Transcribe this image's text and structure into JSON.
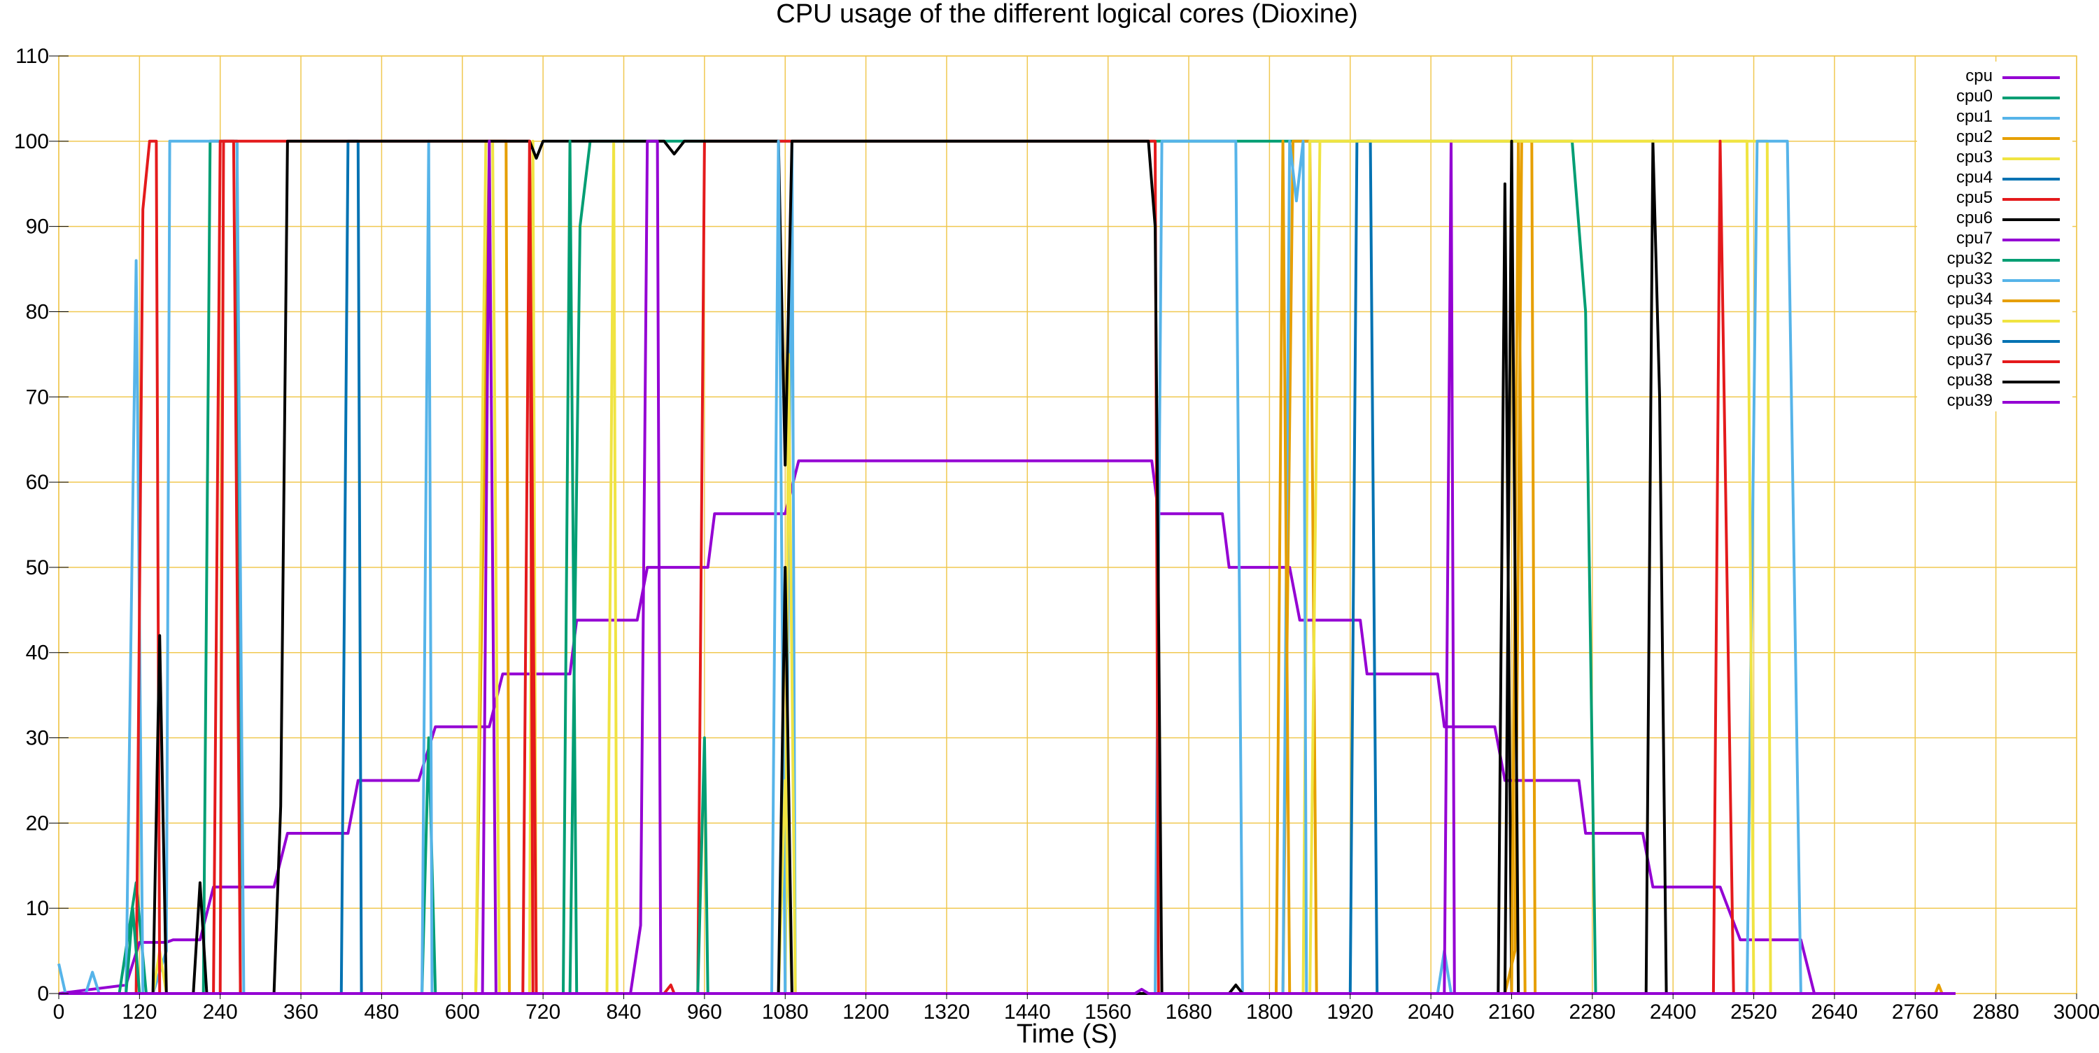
{
  "chart_data": {
    "type": "line",
    "title": "CPU usage of the different logical cores (Dioxine)",
    "xlabel": "Time (S)",
    "ylabel": "",
    "xlim": [
      0,
      3000
    ],
    "ylim": [
      0,
      110
    ],
    "xticks": [
      0,
      120,
      240,
      360,
      480,
      600,
      720,
      840,
      960,
      1080,
      1200,
      1320,
      1440,
      1560,
      1680,
      1800,
      1920,
      2040,
      2160,
      2280,
      2400,
      2520,
      2640,
      2760,
      2880,
      3000
    ],
    "yticks": [
      0,
      10,
      20,
      30,
      40,
      50,
      60,
      70,
      80,
      90,
      100,
      110
    ],
    "grid": true,
    "grid_color": "#f0c850",
    "legend_position": "top-right",
    "series": [
      {
        "name": "cpu",
        "color": "#9400d3",
        "points": [
          [
            0,
            0
          ],
          [
            100,
            1
          ],
          [
            120,
            6
          ],
          [
            160,
            6
          ],
          [
            170,
            6.3
          ],
          [
            210,
            6.3
          ],
          [
            230,
            12.5
          ],
          [
            320,
            12.5
          ],
          [
            340,
            18.8
          ],
          [
            430,
            18.8
          ],
          [
            445,
            25
          ],
          [
            535,
            25
          ],
          [
            560,
            31.3
          ],
          [
            640,
            31.3
          ],
          [
            660,
            37.5
          ],
          [
            760,
            37.5
          ],
          [
            770,
            43.8
          ],
          [
            860,
            43.8
          ],
          [
            875,
            50
          ],
          [
            965,
            50
          ],
          [
            975,
            56.3
          ],
          [
            1080,
            56.3
          ],
          [
            1100,
            62.5
          ],
          [
            1620,
            62.5
          ],
          [
            1625,
            62.5
          ],
          [
            1635,
            56.3
          ],
          [
            1730,
            56.3
          ],
          [
            1740,
            50
          ],
          [
            1830,
            50
          ],
          [
            1845,
            43.8
          ],
          [
            1935,
            43.8
          ],
          [
            1945,
            37.5
          ],
          [
            2050,
            37.5
          ],
          [
            2060,
            31.3
          ],
          [
            2135,
            31.3
          ],
          [
            2150,
            25
          ],
          [
            2260,
            25
          ],
          [
            2270,
            18.8
          ],
          [
            2355,
            18.8
          ],
          [
            2370,
            12.5
          ],
          [
            2470,
            12.5
          ],
          [
            2500,
            6.3
          ],
          [
            2590,
            6.3
          ],
          [
            2610,
            0
          ],
          [
            2820,
            0
          ]
        ]
      },
      {
        "name": "cpu0",
        "color": "#009e73",
        "points": [
          [
            0,
            0
          ],
          [
            90,
            0
          ],
          [
            115,
            13
          ],
          [
            130,
            0
          ],
          [
            215,
            0
          ],
          [
            225,
            100
          ],
          [
            265,
            100
          ],
          [
            270,
            0
          ],
          [
            540,
            0
          ],
          [
            550,
            30
          ],
          [
            560,
            0
          ],
          [
            760,
            0
          ],
          [
            775,
            90
          ],
          [
            790,
            100
          ],
          [
            1820,
            100
          ],
          [
            1840,
            100
          ],
          [
            1860,
            100
          ],
          [
            1880,
            100
          ],
          [
            1890,
            100
          ],
          [
            2250,
            100
          ],
          [
            2270,
            80
          ],
          [
            2285,
            0
          ],
          [
            2820,
            0
          ]
        ]
      },
      {
        "name": "cpu1",
        "color": "#56b4e9",
        "points": [
          [
            0,
            3.5
          ],
          [
            10,
            0
          ],
          [
            40,
            0
          ],
          [
            50,
            2.5
          ],
          [
            60,
            0
          ],
          [
            100,
            0
          ],
          [
            115,
            86
          ],
          [
            125,
            0
          ],
          [
            140,
            0
          ],
          [
            160,
            5
          ],
          [
            165,
            100
          ],
          [
            265,
            100
          ],
          [
            275,
            0
          ],
          [
            540,
            0
          ],
          [
            550,
            100
          ],
          [
            555,
            0
          ],
          [
            1080,
            0
          ],
          [
            1090,
            100
          ],
          [
            1095,
            0
          ],
          [
            1630,
            0
          ],
          [
            1640,
            100
          ],
          [
            1640,
            100
          ],
          [
            1750,
            100
          ],
          [
            1760,
            0
          ],
          [
            2050,
            0
          ],
          [
            2060,
            5
          ],
          [
            2070,
            0
          ],
          [
            2820,
            0
          ]
        ]
      },
      {
        "name": "cpu2",
        "color": "#e69f00",
        "points": [
          [
            0,
            0
          ],
          [
            620,
            0
          ],
          [
            640,
            100
          ],
          [
            665,
            100
          ],
          [
            670,
            0
          ],
          [
            1820,
            0
          ],
          [
            1835,
            100
          ],
          [
            1860,
            100
          ],
          [
            1870,
            0
          ],
          [
            2150,
            0
          ],
          [
            2165,
            5
          ],
          [
            2175,
            100
          ],
          [
            2190,
            100
          ],
          [
            2195,
            0
          ],
          [
            2790,
            0
          ],
          [
            2795,
            1
          ],
          [
            2800,
            0
          ],
          [
            2820,
            0
          ]
        ]
      },
      {
        "name": "cpu3",
        "color": "#f0e442",
        "points": [
          [
            0,
            0
          ],
          [
            140,
            0
          ],
          [
            150,
            5
          ],
          [
            160,
            0
          ],
          [
            620,
            0
          ],
          [
            635,
            100
          ],
          [
            645,
            100
          ],
          [
            655,
            0
          ],
          [
            700,
            0
          ],
          [
            705,
            100
          ],
          [
            710,
            0
          ],
          [
            815,
            0
          ],
          [
            825,
            100
          ],
          [
            830,
            0
          ],
          [
            1080,
            0
          ],
          [
            1085,
            75
          ],
          [
            1095,
            0
          ],
          [
            1850,
            0
          ],
          [
            1860,
            100
          ],
          [
            1870,
            100
          ],
          [
            1880,
            100
          ],
          [
            2530,
            100
          ],
          [
            2540,
            100
          ],
          [
            2545,
            0
          ],
          [
            2820,
            0
          ]
        ]
      },
      {
        "name": "cpu4",
        "color": "#0072b2",
        "points": [
          [
            0,
            0
          ],
          [
            420,
            0
          ],
          [
            430,
            100
          ],
          [
            440,
            100
          ],
          [
            445,
            100
          ],
          [
            450,
            0
          ],
          [
            1920,
            0
          ],
          [
            1930,
            100
          ],
          [
            1950,
            100
          ],
          [
            1960,
            0
          ],
          [
            2820,
            0
          ]
        ]
      },
      {
        "name": "cpu5",
        "color": "#e41a1c",
        "points": [
          [
            0,
            0
          ],
          [
            115,
            0
          ],
          [
            125,
            92
          ],
          [
            135,
            100
          ],
          [
            145,
            100
          ],
          [
            150,
            0
          ],
          [
            240,
            0
          ],
          [
            245,
            100
          ],
          [
            700,
            100
          ],
          [
            705,
            0
          ],
          [
            900,
            0
          ],
          [
            910,
            1
          ],
          [
            915,
            0
          ],
          [
            950,
            0
          ],
          [
            960,
            100
          ],
          [
            1620,
            100
          ],
          [
            1630,
            100
          ],
          [
            1635,
            0
          ],
          [
            2820,
            0
          ]
        ]
      },
      {
        "name": "cpu6",
        "color": "#000000",
        "points": [
          [
            0,
            0
          ],
          [
            140,
            0
          ],
          [
            150,
            42
          ],
          [
            160,
            0
          ],
          [
            200,
            0
          ],
          [
            210,
            13
          ],
          [
            220,
            0
          ],
          [
            320,
            0
          ],
          [
            330,
            22
          ],
          [
            340,
            100
          ],
          [
            690,
            100
          ],
          [
            700,
            100
          ],
          [
            710,
            98
          ],
          [
            720,
            100
          ],
          [
            900,
            100
          ],
          [
            915,
            98.5
          ],
          [
            930,
            100
          ],
          [
            1070,
            100
          ],
          [
            1080,
            62
          ],
          [
            1090,
            100
          ],
          [
            1620,
            100
          ],
          [
            1630,
            90
          ],
          [
            1640,
            0
          ],
          [
            1740,
            0
          ],
          [
            1750,
            1
          ],
          [
            1760,
            0
          ],
          [
            2140,
            0
          ],
          [
            2150,
            95
          ],
          [
            2160,
            0
          ],
          [
            2360,
            0
          ],
          [
            2370,
            100
          ],
          [
            2380,
            70
          ],
          [
            2390,
            0
          ],
          [
            2820,
            0
          ]
        ]
      },
      {
        "name": "cpu7",
        "color": "#9400d3",
        "points": [
          [
            0,
            0
          ],
          [
            630,
            0
          ],
          [
            640,
            100
          ],
          [
            650,
            0
          ],
          [
            840,
            0
          ],
          [
            850,
            0
          ],
          [
            865,
            8
          ],
          [
            875,
            100
          ],
          [
            890,
            100
          ],
          [
            895,
            0
          ],
          [
            2060,
            0
          ],
          [
            2070,
            100
          ],
          [
            2075,
            0
          ],
          [
            2820,
            0
          ]
        ]
      },
      {
        "name": "cpu32",
        "color": "#009e73",
        "points": [
          [
            0,
            0
          ],
          [
            100,
            0
          ],
          [
            110,
            10
          ],
          [
            120,
            0
          ],
          [
            750,
            0
          ],
          [
            760,
            100
          ],
          [
            770,
            0
          ],
          [
            950,
            0
          ],
          [
            960,
            30
          ],
          [
            965,
            0
          ],
          [
            2820,
            0
          ]
        ]
      },
      {
        "name": "cpu33",
        "color": "#56b4e9",
        "points": [
          [
            0,
            0
          ],
          [
            1060,
            0
          ],
          [
            1070,
            100
          ],
          [
            1080,
            0
          ],
          [
            1820,
            0
          ],
          [
            1830,
            100
          ],
          [
            1840,
            93
          ],
          [
            1850,
            100
          ],
          [
            1855,
            0
          ],
          [
            2510,
            0
          ],
          [
            2525,
            100
          ],
          [
            2570,
            100
          ],
          [
            2590,
            0
          ],
          [
            2820,
            0
          ]
        ]
      },
      {
        "name": "cpu34",
        "color": "#e69f00",
        "points": [
          [
            0,
            0
          ],
          [
            1800,
            0
          ],
          [
            1810,
            0
          ],
          [
            1820,
            100
          ],
          [
            1830,
            0
          ],
          [
            2160,
            0
          ],
          [
            2170,
            100
          ],
          [
            2180,
            0
          ],
          [
            2820,
            0
          ]
        ]
      },
      {
        "name": "cpu35",
        "color": "#f0e442",
        "points": [
          [
            0,
            0
          ],
          [
            1070,
            0
          ],
          [
            1080,
            25
          ],
          [
            1090,
            0
          ],
          [
            1860,
            0
          ],
          [
            1875,
            100
          ],
          [
            2510,
            100
          ],
          [
            2520,
            0
          ],
          [
            2820,
            0
          ]
        ]
      },
      {
        "name": "cpu36",
        "color": "#0072b2",
        "points": [
          [
            0,
            0
          ],
          [
            2820,
            0
          ]
        ]
      },
      {
        "name": "cpu37",
        "color": "#e41a1c",
        "points": [
          [
            0,
            0
          ],
          [
            230,
            0
          ],
          [
            240,
            100
          ],
          [
            260,
            100
          ],
          [
            270,
            0
          ],
          [
            690,
            0
          ],
          [
            700,
            100
          ],
          [
            710,
            0
          ],
          [
            2460,
            0
          ],
          [
            2470,
            100
          ],
          [
            2490,
            0
          ],
          [
            2820,
            0
          ]
        ]
      },
      {
        "name": "cpu38",
        "color": "#000000",
        "points": [
          [
            0,
            0
          ],
          [
            1070,
            0
          ],
          [
            1080,
            50
          ],
          [
            1090,
            0
          ],
          [
            2150,
            0
          ],
          [
            2160,
            100
          ],
          [
            2170,
            0
          ],
          [
            2820,
            0
          ]
        ]
      },
      {
        "name": "cpu39",
        "color": "#9400d3",
        "points": [
          [
            0,
            0
          ],
          [
            1600,
            0
          ],
          [
            1610,
            0.5
          ],
          [
            1620,
            0
          ],
          [
            2820,
            0
          ]
        ]
      }
    ]
  }
}
